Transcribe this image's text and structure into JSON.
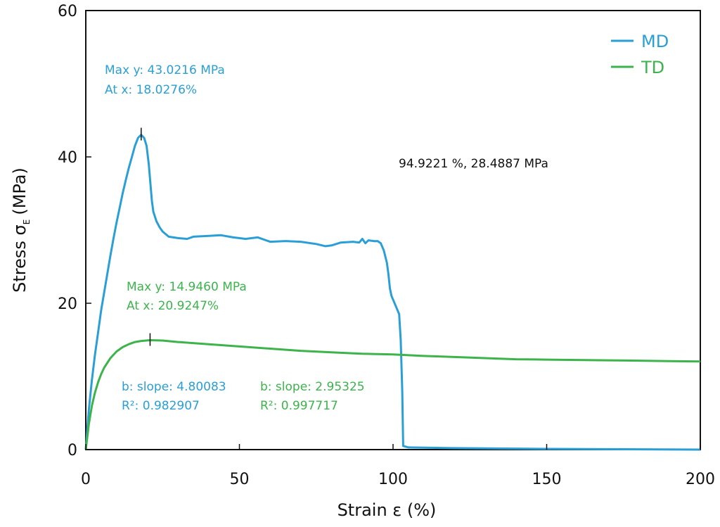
{
  "chart_data": {
    "type": "line",
    "xlabel": "Strain ε (%)",
    "ylabel_main": "Stress σ",
    "ylabel_sub": "E",
    "ylabel_unit": "(MPa)",
    "xlim": [
      0,
      200
    ],
    "ylim": [
      0,
      60
    ],
    "xticks": [
      "0",
      "50",
      "100",
      "150",
      "200"
    ],
    "yticks": [
      "0",
      "20",
      "40",
      "60"
    ],
    "grid": false,
    "legend_position": "top-right",
    "legend": [
      {
        "name": "MD",
        "color": "#2a9fd6"
      },
      {
        "name": "TD",
        "color": "#3cb44b"
      }
    ],
    "series": [
      {
        "name": "MD",
        "color": "#2a9fd6",
        "points": [
          [
            0,
            0
          ],
          [
            1,
            5.5
          ],
          [
            2,
            9.5
          ],
          [
            3,
            13
          ],
          [
            4,
            16
          ],
          [
            5,
            19
          ],
          [
            6,
            21.5
          ],
          [
            7,
            24
          ],
          [
            8,
            26.5
          ],
          [
            9,
            28.8
          ],
          [
            10,
            31
          ],
          [
            11,
            33
          ],
          [
            12,
            35
          ],
          [
            13,
            36.8
          ],
          [
            14,
            38.5
          ],
          [
            15,
            40
          ],
          [
            16,
            41.5
          ],
          [
            17,
            42.6
          ],
          [
            18,
            43.02
          ],
          [
            19,
            42.6
          ],
          [
            19.8,
            41.5
          ],
          [
            20.5,
            39
          ],
          [
            21,
            36.5
          ],
          [
            21.5,
            34
          ],
          [
            22,
            32.5
          ],
          [
            23,
            31.2
          ],
          [
            24,
            30.4
          ],
          [
            25,
            29.8
          ],
          [
            27,
            29.1
          ],
          [
            30,
            28.9
          ],
          [
            33,
            28.8
          ],
          [
            35,
            29.1
          ],
          [
            40,
            29.2
          ],
          [
            44,
            29.3
          ],
          [
            48,
            29.0
          ],
          [
            52,
            28.8
          ],
          [
            56,
            29.0
          ],
          [
            60,
            28.4
          ],
          [
            65,
            28.5
          ],
          [
            70,
            28.4
          ],
          [
            75,
            28.1
          ],
          [
            78,
            27.8
          ],
          [
            80,
            27.9
          ],
          [
            83,
            28.3
          ],
          [
            87,
            28.4
          ],
          [
            89,
            28.3
          ],
          [
            90,
            28.8
          ],
          [
            91,
            28.2
          ],
          [
            92,
            28.6
          ],
          [
            94,
            28.49
          ],
          [
            95,
            28.5
          ],
          [
            96,
            28.2
          ],
          [
            97,
            27.2
          ],
          [
            98,
            25.5
          ],
          [
            98.5,
            24
          ],
          [
            99,
            22
          ],
          [
            99.5,
            21
          ],
          [
            100,
            20.5
          ],
          [
            101,
            19.5
          ],
          [
            102,
            18.5
          ],
          [
            102.5,
            15
          ],
          [
            103,
            8
          ],
          [
            103.3,
            0.5
          ],
          [
            105,
            0.3
          ],
          [
            120,
            0.2
          ],
          [
            150,
            0.1
          ],
          [
            200,
            0.0
          ]
        ]
      },
      {
        "name": "TD",
        "color": "#3cb44b",
        "points": [
          [
            0,
            0
          ],
          [
            1,
            3.5
          ],
          [
            2,
            6
          ],
          [
            3,
            7.8
          ],
          [
            4,
            9.2
          ],
          [
            5,
            10.3
          ],
          [
            6,
            11.2
          ],
          [
            8,
            12.5
          ],
          [
            10,
            13.4
          ],
          [
            12,
            14.0
          ],
          [
            14,
            14.4
          ],
          [
            16,
            14.7
          ],
          [
            18,
            14.85
          ],
          [
            20.92,
            14.95
          ],
          [
            25,
            14.9
          ],
          [
            30,
            14.7
          ],
          [
            40,
            14.4
          ],
          [
            50,
            14.1
          ],
          [
            60,
            13.8
          ],
          [
            70,
            13.5
          ],
          [
            80,
            13.3
          ],
          [
            90,
            13.1
          ],
          [
            100,
            13.0
          ],
          [
            110,
            12.8
          ],
          [
            120,
            12.65
          ],
          [
            130,
            12.5
          ],
          [
            140,
            12.35
          ],
          [
            150,
            12.3
          ],
          [
            160,
            12.25
          ],
          [
            170,
            12.2
          ],
          [
            180,
            12.15
          ],
          [
            190,
            12.1
          ],
          [
            200,
            12.05
          ]
        ]
      }
    ],
    "markers": [
      {
        "series": "MD",
        "x": 18.0276,
        "y": 43.0216
      },
      {
        "series": "TD",
        "x": 20.9247,
        "y": 14.946
      }
    ],
    "annotations": {
      "md_max_line1": "Max y: 43.0216 MPa",
      "md_max_line2": "At x: 18.0276%",
      "td_max_line1": "Max y: 14.9460 MPa",
      "td_max_line2": "At x: 20.9247%",
      "cursor_readout": "94.9221 %, 28.4887 MPa",
      "md_slope_line1": "b: slope: 4.80083",
      "md_slope_line2": "R²: 0.982907",
      "td_slope_line1": "b: slope: 2.95325",
      "td_slope_line2": "R²: 0.997717"
    }
  }
}
